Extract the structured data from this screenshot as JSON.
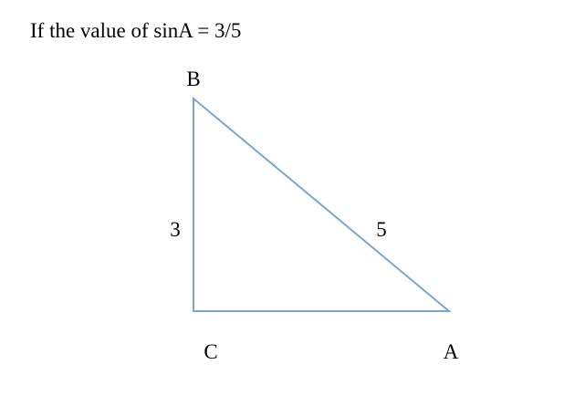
{
  "question": {
    "text": "If the value of sinA = 3/5"
  },
  "triangle": {
    "vertices": {
      "B": "B",
      "C": "C",
      "A": "A"
    },
    "sides": {
      "BC": "3",
      "AB": "5"
    },
    "stroke_color": "#79a7cf"
  }
}
